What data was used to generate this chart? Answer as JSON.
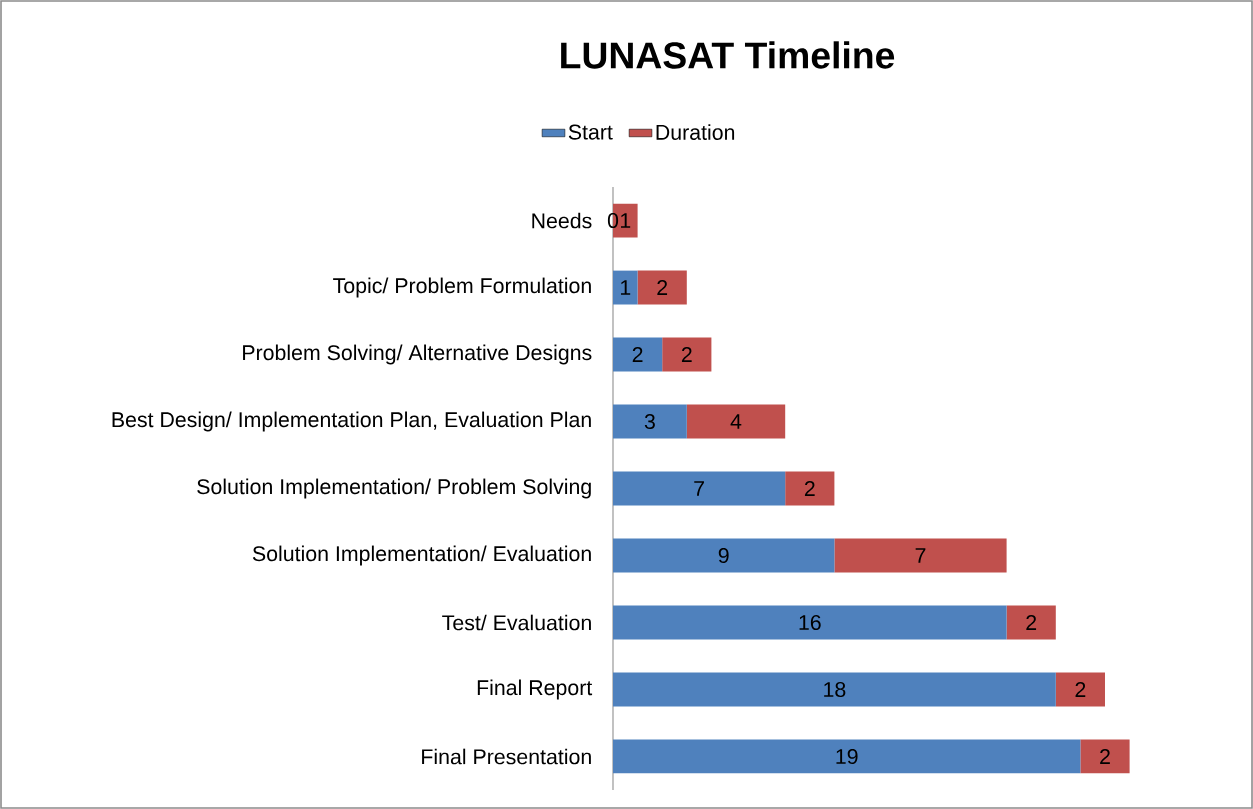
{
  "chart_data": {
    "type": "bar",
    "title": "LUNASAT Timeline",
    "orientation": "horizontal",
    "stacked": true,
    "data_labels": true,
    "legend": "top",
    "categories": [
      "Needs",
      "Topic/ Problem Formulation",
      "Problem Solving/ Alternative Designs",
      "Best Design/ Implementation Plan, Evaluation Plan",
      "Solution Implementation/ Problem Solving",
      "Solution Implementation/ Evaluation",
      "Test/ Evaluation",
      "Final Report",
      "Final Presentation"
    ],
    "series": [
      {
        "name": "Start",
        "color": "#4f81bd",
        "values": [
          0,
          1,
          2,
          3,
          7,
          9,
          16,
          18,
          19
        ]
      },
      {
        "name": "Duration",
        "color": "#c0504d",
        "values": [
          1,
          2,
          2,
          4,
          2,
          7,
          2,
          2,
          2
        ]
      }
    ]
  }
}
